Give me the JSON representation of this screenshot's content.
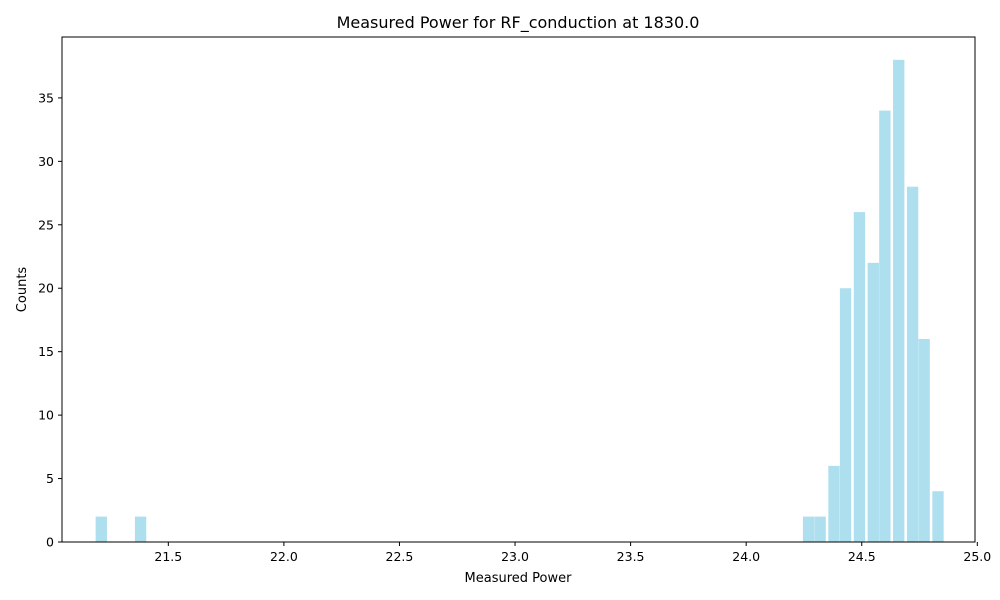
{
  "chart_data": {
    "type": "bar",
    "title": "Measured Power for RF_conduction at 1830.0",
    "xlabel": "Measured Power",
    "ylabel": "Counts",
    "xlim": [
      21.04,
      24.99
    ],
    "ylim": [
      0,
      39.8
    ],
    "x_ticks": [
      21.5,
      22.0,
      22.5,
      23.0,
      23.5,
      24.0,
      24.5,
      25.0
    ],
    "x_tick_labels": [
      "21.5",
      "22.0",
      "22.5",
      "23.0",
      "23.5",
      "24.0",
      "24.5",
      "25.0"
    ],
    "y_ticks": [
      0,
      5,
      10,
      15,
      20,
      25,
      30,
      35
    ],
    "y_tick_labels": [
      "0",
      "5",
      "10",
      "15",
      "20",
      "25",
      "30",
      "35"
    ],
    "bar_width": 0.049,
    "bar_color": "#ADDFEF",
    "grid": false,
    "x": [
      21.21,
      21.38,
      24.27,
      24.32,
      24.38,
      24.43,
      24.49,
      24.55,
      24.6,
      24.66,
      24.72,
      24.77,
      24.83
    ],
    "values": [
      2,
      2,
      2,
      2,
      6,
      20,
      26,
      22,
      34,
      38,
      28,
      16,
      4
    ]
  }
}
